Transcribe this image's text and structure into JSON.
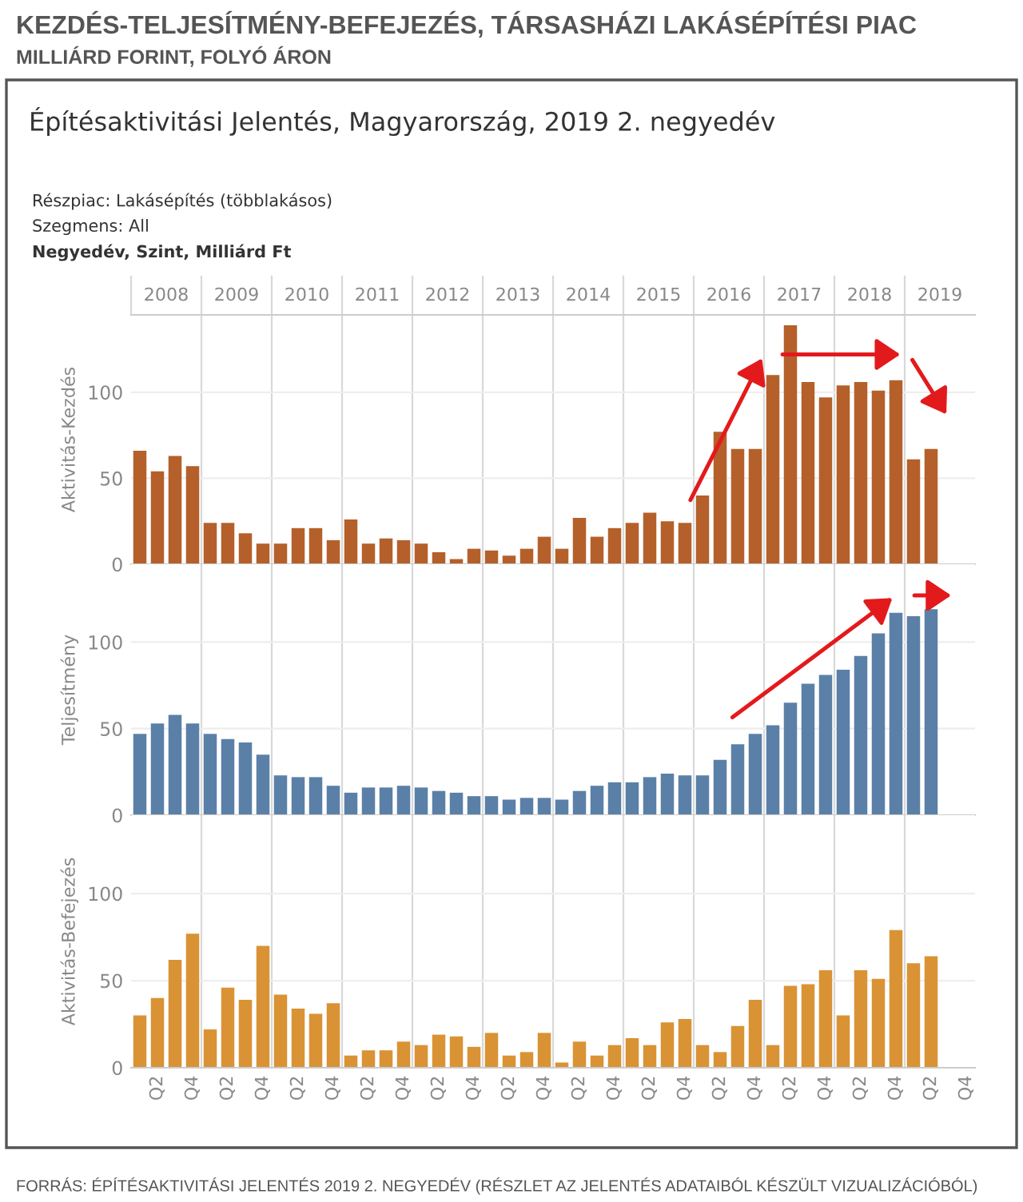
{
  "chart_data": [
    {
      "type": "bar",
      "title": "KEZDÉS-TELJESÍTMÉNY-BEFEJEZÉS, TÁRSASHÁZI LAKÁSÉPÍTÉSI PIAC",
      "subtitle": "MILLIÁRD FORINT, FOLYÓ ÁRON",
      "annotations": [
        "Építésaktivitási Jelentés, Magyarország, 2019 2. negyedév",
        "Részpiac: Lakásépítés (többlakásos)",
        "Szegmens: All",
        "Negyedév, Szint, Milliárd Ft",
        "2008",
        "2009",
        "2010",
        "2011",
        "2012",
        "2013",
        "2014",
        "2015",
        "2016",
        "2017",
        "2018",
        "2019",
        "FORRÁS: ÉPÍTÉSAKTIVITÁSI JELENTÉS 2019 2. NEGYEDÉV (RÉSZLET AZ JELENTÉS ADATAIBÓL KÉSZÜLT VIZUALIZÁCIÓBÓL)"
      ],
      "values": [
        66,
        54,
        63,
        57,
        24,
        24,
        18,
        12,
        12,
        21,
        21,
        14,
        26,
        12,
        15,
        14,
        12,
        7,
        3,
        9,
        8,
        5,
        9,
        16,
        9,
        27,
        16,
        21,
        24,
        30,
        25,
        24,
        40,
        77,
        67,
        67,
        110,
        139,
        106,
        97,
        104,
        106,
        101,
        107,
        61,
        67,
        null,
        null
      ],
      "color": "#b5602a",
      "ylabel": "Aktivitás-Kezdés",
      "ylim": [
        0,
        145
      ],
      "yticks": [
        0,
        50,
        100
      ],
      "grid": true,
      "tick_labels": "y"
    },
    {
      "type": "bar",
      "values": [
        47,
        53,
        58,
        53,
        47,
        44,
        42,
        35,
        23,
        22,
        22,
        17,
        13,
        16,
        16,
        17,
        16,
        14,
        13,
        11,
        11,
        9,
        10,
        10,
        9,
        14,
        17,
        19,
        19,
        22,
        24,
        23,
        23,
        32,
        41,
        47,
        52,
        65,
        76,
        81,
        84,
        92,
        105,
        117,
        115,
        119,
        null,
        null
      ],
      "color": "#5b80a8",
      "ylabel": "Teljesítmény",
      "ylim": [
        0,
        145
      ],
      "yticks": [
        0,
        50,
        100
      ],
      "grid": true,
      "tick_labels": "y"
    },
    {
      "type": "bar",
      "categories": [
        null,
        "Q2",
        null,
        "Q4",
        null,
        "Q2",
        null,
        "Q4",
        null,
        "Q2",
        null,
        "Q4",
        null,
        "Q2",
        null,
        "Q4",
        null,
        "Q2",
        null,
        "Q4",
        null,
        "Q2",
        null,
        "Q4",
        null,
        "Q2",
        null,
        "Q4",
        null,
        "Q2",
        null,
        "Q4",
        null,
        "Q2",
        null,
        "Q4",
        null,
        "Q2",
        null,
        "Q4",
        null,
        "Q2",
        null,
        "Q4",
        null,
        "Q2",
        null,
        "Q4"
      ],
      "values": [
        30,
        40,
        62,
        77,
        22,
        46,
        39,
        70,
        42,
        34,
        31,
        37,
        7,
        10,
        10,
        15,
        13,
        19,
        18,
        12,
        20,
        7,
        9,
        20,
        3,
        15,
        7,
        13,
        17,
        13,
        26,
        28,
        13,
        9,
        24,
        39,
        13,
        47,
        48,
        56,
        30,
        56,
        51,
        79,
        60,
        64,
        null,
        null
      ],
      "color": "#d99335",
      "ylabel": "Aktivitás-Befejezés",
      "ylim": [
        0,
        145
      ],
      "yticks": [
        0,
        50,
        100
      ],
      "grid": true
    }
  ]
}
